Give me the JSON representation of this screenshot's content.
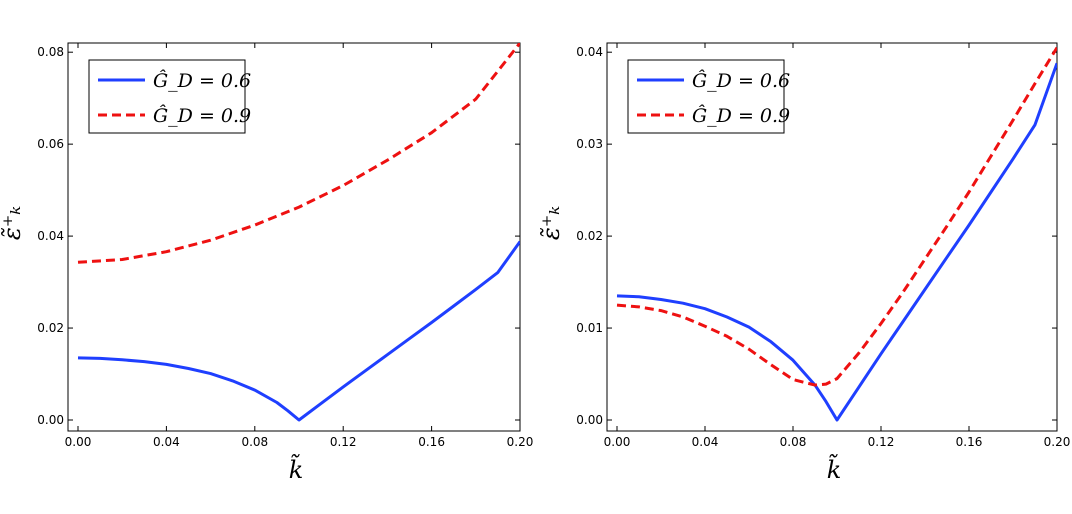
{
  "chart_data": [
    {
      "type": "line",
      "xlabel": "k̃",
      "ylabel": "ε̃⁺ₖ",
      "xlim": [
        0.0,
        0.2
      ],
      "ylim": [
        0.0,
        0.082
      ],
      "xticks": [
        0.0,
        0.04,
        0.08,
        0.12,
        0.16,
        0.2
      ],
      "xtick_labels": [
        "0.00",
        "0.04",
        "0.08",
        "0.12",
        "0.16",
        "0.20"
      ],
      "yticks": [
        0.0,
        0.02,
        0.04,
        0.06,
        0.08
      ],
      "ytick_labels": [
        "0.00",
        "0.02",
        "0.04",
        "0.06",
        "0.08"
      ],
      "grid": false,
      "legend_position": "top-left",
      "series": [
        {
          "name": "Ĝ_D = 0.6",
          "color": "#1f3fff",
          "style": "solid",
          "x": [
            0.0,
            0.01,
            0.02,
            0.03,
            0.04,
            0.05,
            0.06,
            0.07,
            0.08,
            0.09,
            0.095,
            0.1,
            0.11,
            0.12,
            0.13,
            0.14,
            0.15,
            0.16,
            0.17,
            0.18,
            0.19,
            0.2
          ],
          "values": [
            0.0135,
            0.0134,
            0.0131,
            0.0127,
            0.0121,
            0.0112,
            0.0101,
            0.0085,
            0.0065,
            0.0038,
            0.002,
            0.0,
            0.0036,
            0.0072,
            0.0107,
            0.0142,
            0.0177,
            0.0212,
            0.0248,
            0.0284,
            0.0321,
            0.0388
          ]
        },
        {
          "name": "Ĝ_D = 0.9",
          "color": "#ee1111",
          "style": "dashed",
          "x": [
            0.0,
            0.02,
            0.04,
            0.06,
            0.08,
            0.1,
            0.12,
            0.14,
            0.16,
            0.18,
            0.2
          ],
          "values": [
            0.0343,
            0.0349,
            0.0366,
            0.0391,
            0.0424,
            0.0463,
            0.051,
            0.0565,
            0.0625,
            0.0698,
            0.082
          ]
        }
      ]
    },
    {
      "type": "line",
      "xlabel": "k̃",
      "ylabel": "ε̃⁺ₖ",
      "xlim": [
        0.0,
        0.2
      ],
      "ylim": [
        0.0,
        0.041
      ],
      "xticks": [
        0.0,
        0.04,
        0.08,
        0.12,
        0.16,
        0.2
      ],
      "xtick_labels": [
        "0.00",
        "0.04",
        "0.08",
        "0.12",
        "0.16",
        "0.20"
      ],
      "yticks": [
        0.0,
        0.01,
        0.02,
        0.03,
        0.04
      ],
      "ytick_labels": [
        "0.00",
        "0.01",
        "0.02",
        "0.03",
        "0.04"
      ],
      "grid": false,
      "legend_position": "top-left",
      "series": [
        {
          "name": "Ĝ_D = 0.6",
          "color": "#1f3fff",
          "style": "solid",
          "x": [
            0.0,
            0.01,
            0.02,
            0.03,
            0.04,
            0.05,
            0.06,
            0.07,
            0.08,
            0.09,
            0.095,
            0.1,
            0.11,
            0.12,
            0.13,
            0.14,
            0.15,
            0.16,
            0.17,
            0.18,
            0.19,
            0.2
          ],
          "values": [
            0.0135,
            0.0134,
            0.0131,
            0.0127,
            0.0121,
            0.0112,
            0.0101,
            0.0085,
            0.0065,
            0.0038,
            0.002,
            0.0,
            0.0036,
            0.0072,
            0.0107,
            0.0142,
            0.0177,
            0.0212,
            0.0248,
            0.0284,
            0.0321,
            0.0388
          ]
        },
        {
          "name": "Ĝ_D = 0.9",
          "color": "#ee1111",
          "style": "dashed",
          "x": [
            0.0,
            0.01,
            0.02,
            0.03,
            0.04,
            0.05,
            0.06,
            0.07,
            0.08,
            0.09,
            0.095,
            0.1,
            0.11,
            0.12,
            0.13,
            0.14,
            0.15,
            0.16,
            0.17,
            0.18,
            0.19,
            0.2
          ],
          "values": [
            0.0125,
            0.0123,
            0.0119,
            0.0112,
            0.0102,
            0.0091,
            0.0077,
            0.006,
            0.0044,
            0.0038,
            0.0039,
            0.0045,
            0.0073,
            0.0105,
            0.0139,
            0.0175,
            0.0211,
            0.0248,
            0.0287,
            0.0326,
            0.0366,
            0.0405
          ]
        }
      ]
    }
  ]
}
